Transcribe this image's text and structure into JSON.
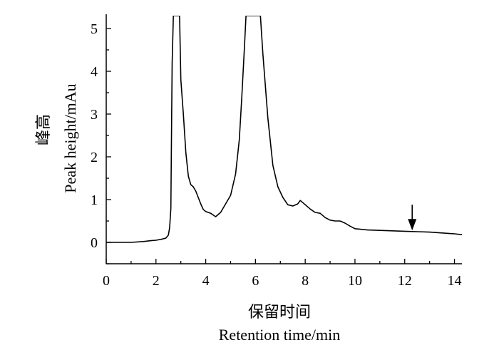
{
  "chart_data": {
    "type": "line",
    "title": "",
    "xlabel_cn": "保留时间",
    "xlabel": "Retention time/min",
    "ylabel_cn": "峰高",
    "ylabel": "Peak height/mAu",
    "xlim": [
      0,
      14.3
    ],
    "ylim": [
      -0.5,
      5.3
    ],
    "xticks": [
      0,
      2,
      4,
      6,
      8,
      10,
      12,
      14
    ],
    "yticks": [
      0,
      1,
      2,
      3,
      4,
      5
    ],
    "grid": false,
    "series": [
      {
        "x": [
          0,
          1.0,
          1.5,
          1.8,
          2.0,
          2.2,
          2.4,
          2.5,
          2.55,
          2.6,
          2.62,
          2.65,
          2.7,
          2.75,
          2.8,
          2.85,
          2.9,
          2.95,
          3.0,
          3.1,
          3.2,
          3.3,
          3.4,
          3.5,
          3.6,
          3.7,
          3.8,
          3.9,
          4.0,
          4.2,
          4.4,
          4.6,
          4.8,
          5.0,
          5.2,
          5.35,
          5.45,
          5.55,
          5.62,
          6.2,
          6.3,
          6.5,
          6.7,
          6.9,
          7.1,
          7.3,
          7.5,
          7.7,
          7.8,
          8.0,
          8.2,
          8.4,
          8.6,
          8.8,
          9.0,
          9.2,
          9.4,
          9.6,
          9.8,
          10.0,
          10.5,
          11.0,
          11.5,
          12.0,
          12.5,
          13.0,
          13.5,
          14.0,
          14.3
        ],
        "y": [
          0.0,
          0.0,
          0.02,
          0.04,
          0.05,
          0.07,
          0.1,
          0.17,
          0.35,
          0.8,
          2.2,
          4.2,
          5.3,
          5.3,
          5.3,
          5.3,
          5.3,
          5.3,
          3.8,
          3.0,
          2.1,
          1.55,
          1.35,
          1.3,
          1.2,
          1.05,
          0.9,
          0.77,
          0.72,
          0.68,
          0.6,
          0.7,
          0.9,
          1.1,
          1.6,
          2.4,
          3.4,
          4.5,
          5.3,
          5.3,
          4.4,
          2.9,
          1.8,
          1.3,
          1.05,
          0.88,
          0.85,
          0.9,
          0.98,
          0.88,
          0.78,
          0.7,
          0.68,
          0.58,
          0.52,
          0.5,
          0.5,
          0.45,
          0.38,
          0.32,
          0.29,
          0.28,
          0.27,
          0.26,
          0.25,
          0.24,
          0.22,
          0.2,
          0.18
        ]
      }
    ],
    "annotations": [
      {
        "type": "arrow",
        "direction": "down",
        "x": 12.3,
        "y_tip": 0.28,
        "y_tail": 0.88
      }
    ]
  }
}
